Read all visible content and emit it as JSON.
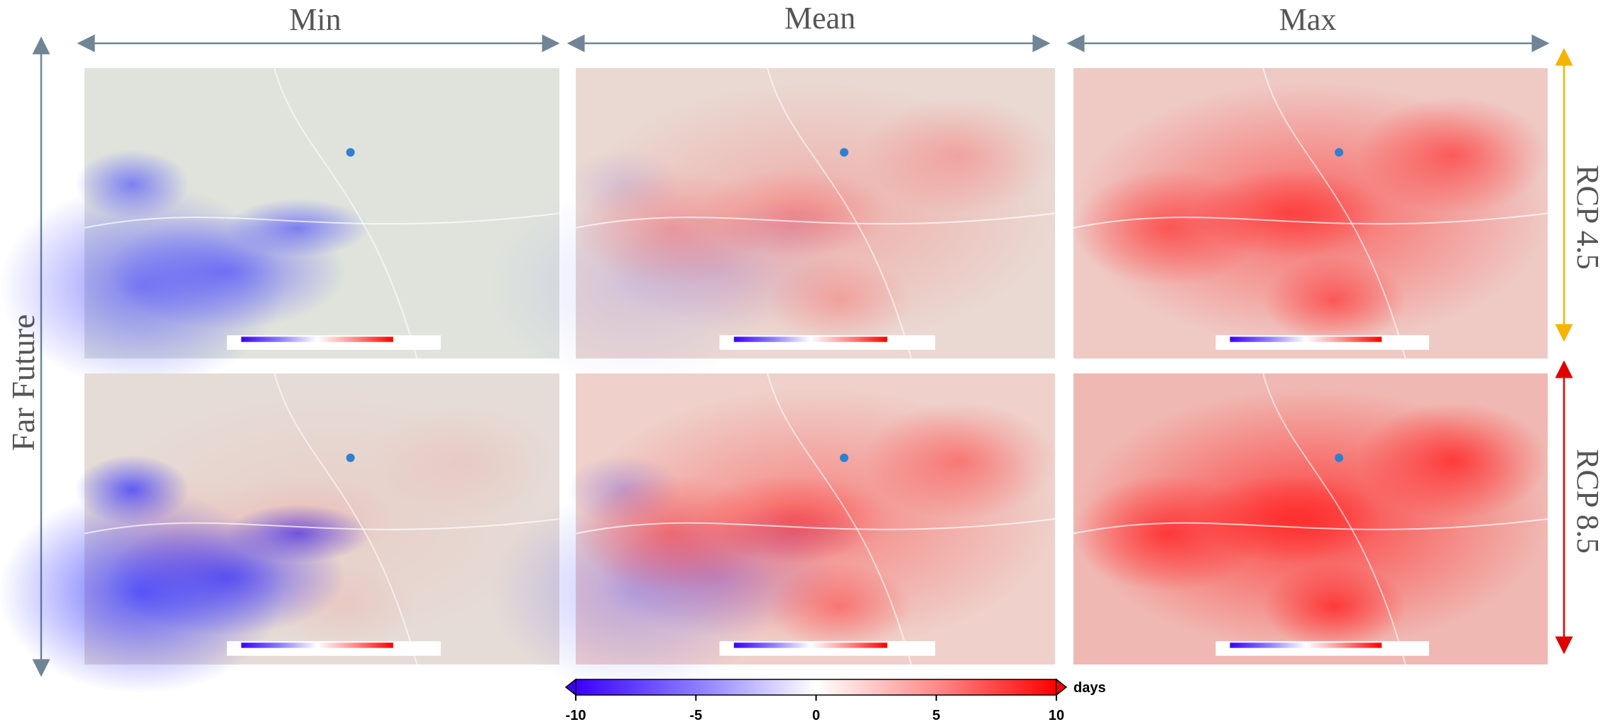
{
  "columns": [
    "Min",
    "Mean",
    "Max"
  ],
  "rows": [
    "RCP 4.5",
    "RCP 8.5"
  ],
  "period": "Far Future",
  "colorbar": {
    "label": "days",
    "range": [
      -10,
      10
    ],
    "ticks": [
      -10,
      -5,
      0,
      5,
      10
    ]
  }
}
